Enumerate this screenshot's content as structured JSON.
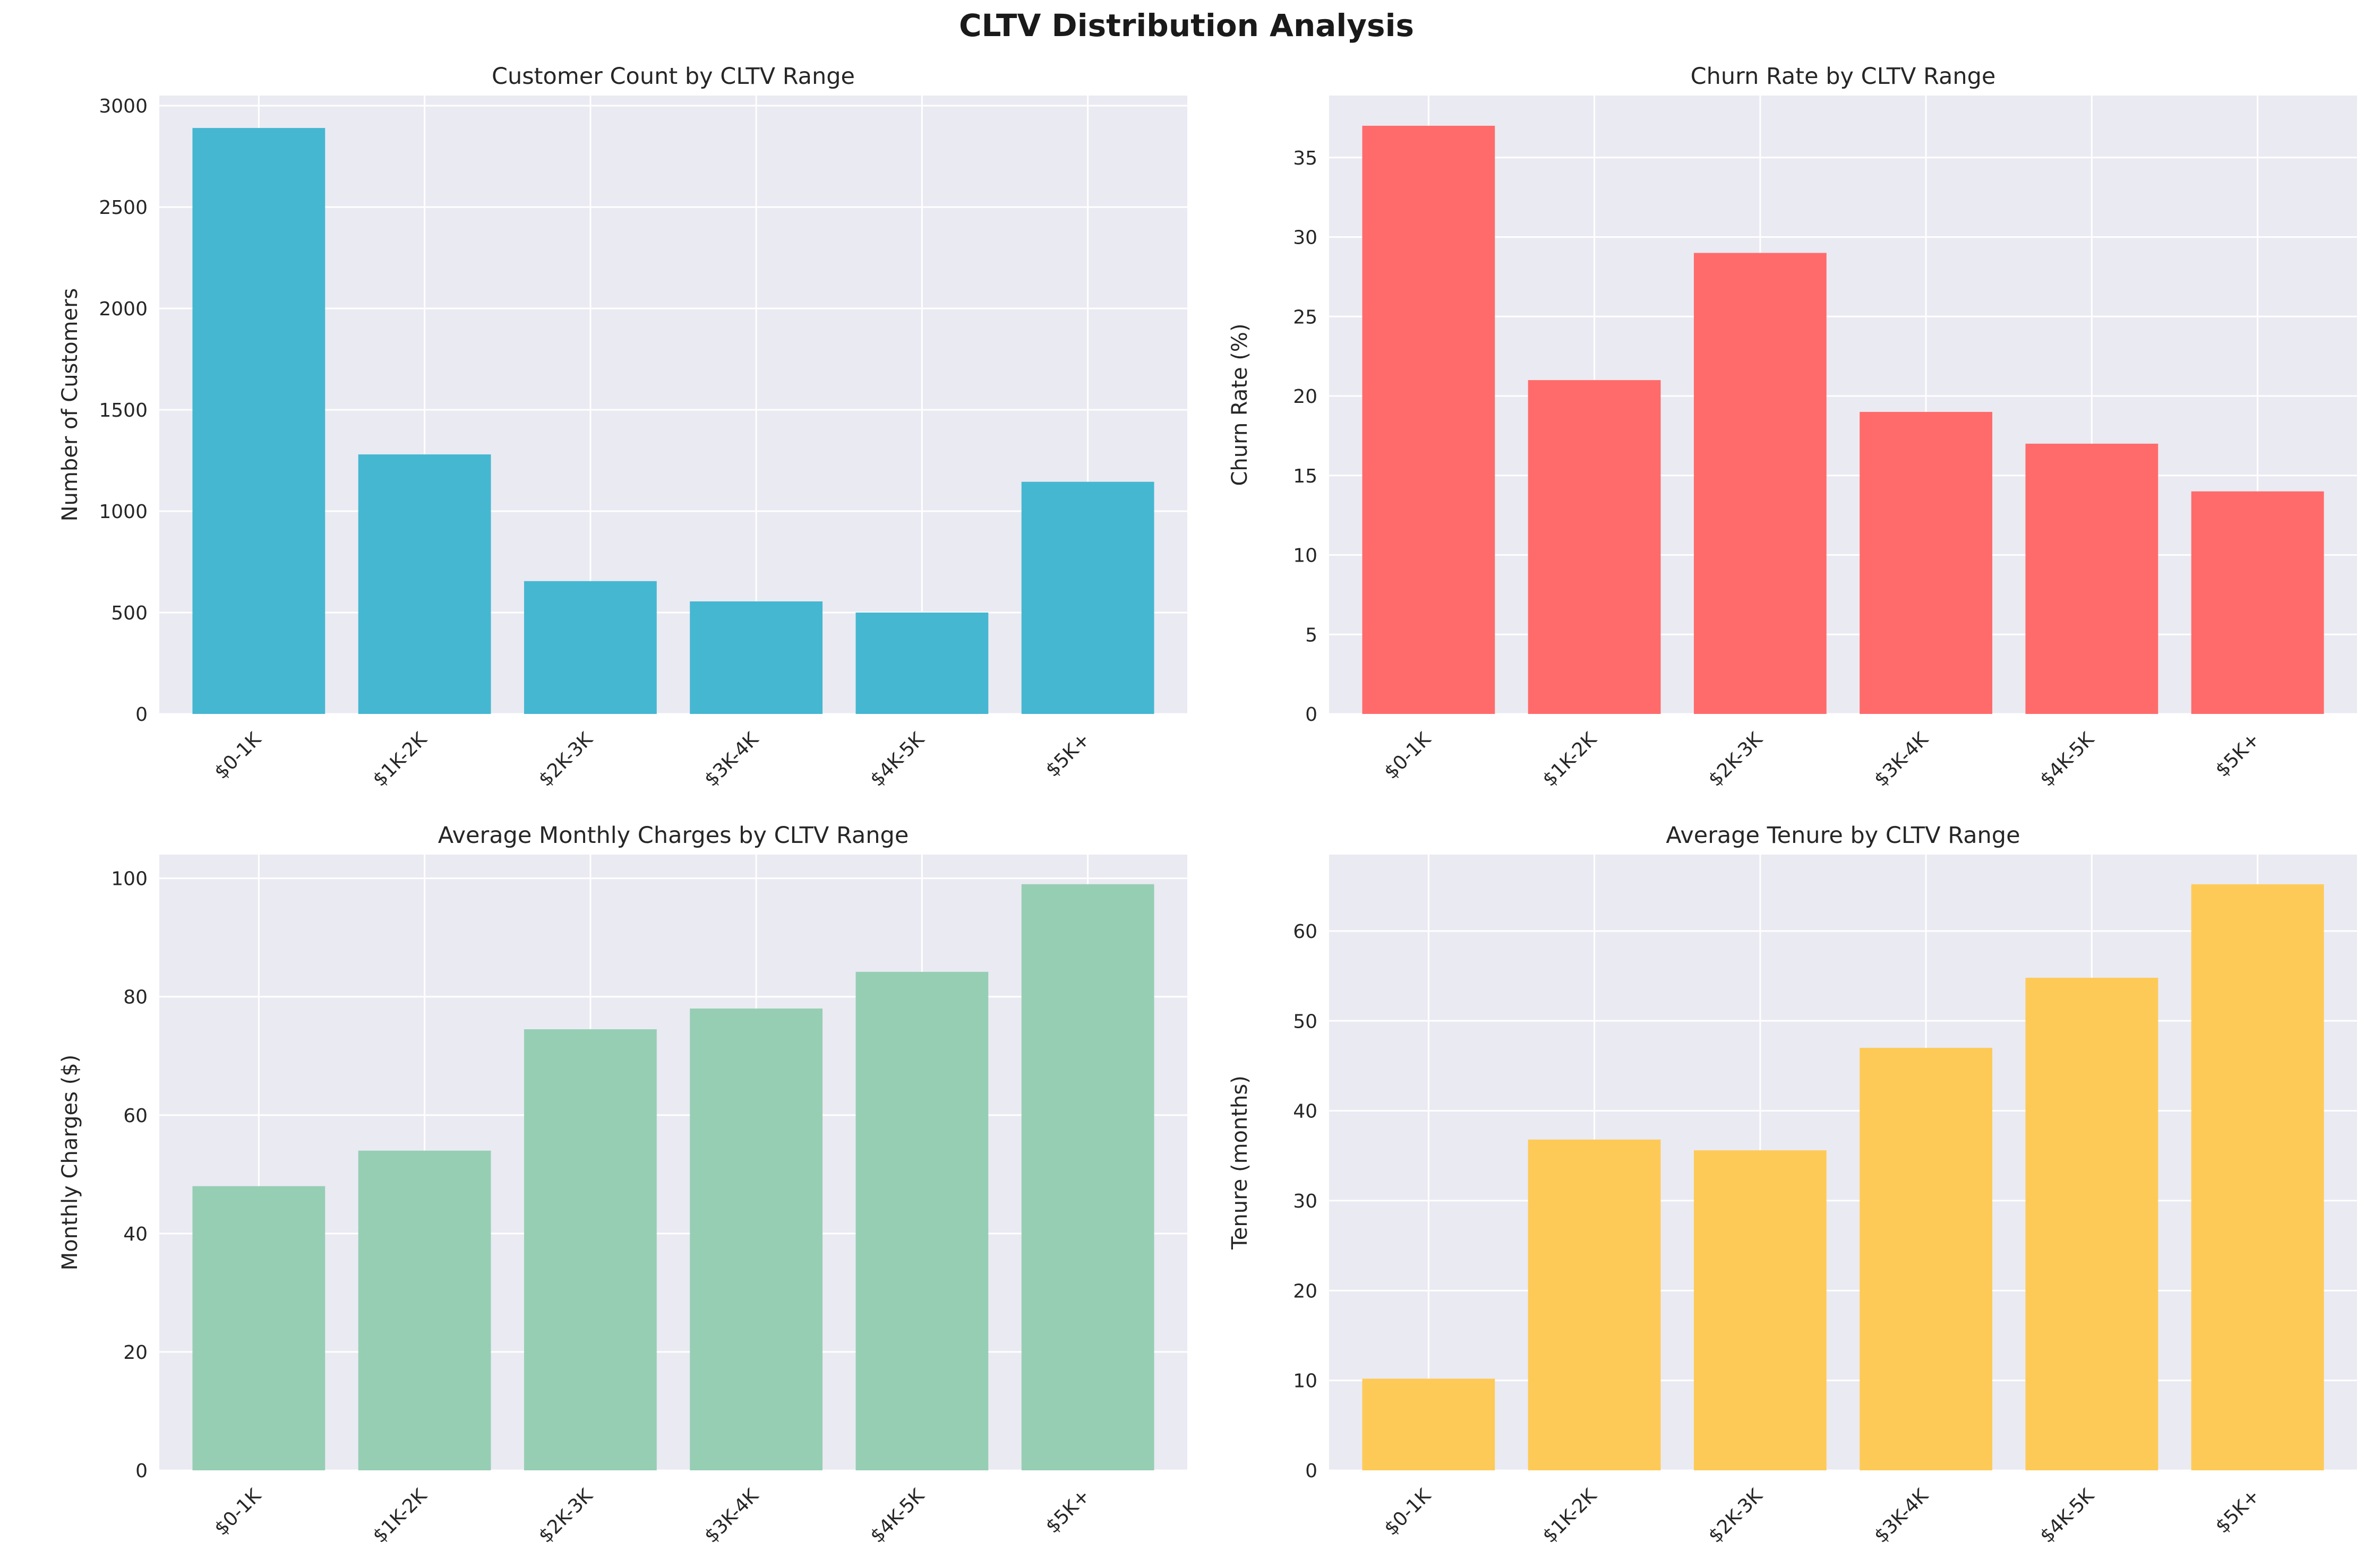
{
  "figure": {
    "title": "CLTV Distribution Analysis"
  },
  "chart_data": [
    {
      "type": "bar",
      "title": "Customer Count by CLTV Range",
      "xlabel": "",
      "ylabel": "Number of Customers",
      "categories": [
        "$0-1K",
        "$1K-2K",
        "$2K-3K",
        "$3K-4K",
        "$4K-5K",
        "$5K+"
      ],
      "values": [
        2890,
        1280,
        655,
        555,
        500,
        1145
      ],
      "ylim": [
        0,
        3050
      ],
      "yticks": [
        0,
        500,
        1000,
        1500,
        2000,
        2500,
        3000
      ],
      "color": "#45b7d1",
      "grid": true
    },
    {
      "type": "bar",
      "title": "Churn Rate by CLTV Range",
      "xlabel": "",
      "ylabel": "Churn Rate (%)",
      "categories": [
        "$0-1K",
        "$1K-2K",
        "$2K-3K",
        "$3K-4K",
        "$4K-5K",
        "$5K+"
      ],
      "values": [
        37,
        21,
        29,
        19,
        17,
        14
      ],
      "ylim": [
        0,
        38.9
      ],
      "yticks": [
        0,
        5,
        10,
        15,
        20,
        25,
        30,
        35
      ],
      "color": "#ff6b6b",
      "grid": true
    },
    {
      "type": "bar",
      "title": "Average Monthly Charges by CLTV Range",
      "xlabel": "",
      "ylabel": "Monthly Charges ($)",
      "categories": [
        "$0-1K",
        "$1K-2K",
        "$2K-3K",
        "$3K-4K",
        "$4K-5K",
        "$5K+"
      ],
      "values": [
        48,
        54,
        74.5,
        78,
        84.2,
        99
      ],
      "ylim": [
        0,
        104
      ],
      "yticks": [
        0,
        20,
        40,
        60,
        80,
        100
      ],
      "color": "#96ceb4",
      "grid": true
    },
    {
      "type": "bar",
      "title": "Average Tenure by CLTV Range",
      "xlabel": "",
      "ylabel": "Tenure (months)",
      "categories": [
        "$0-1K",
        "$1K-2K",
        "$2K-3K",
        "$3K-4K",
        "$4K-5K",
        "$5K+"
      ],
      "values": [
        10.2,
        36.8,
        35.6,
        47,
        54.8,
        65.2
      ],
      "ylim": [
        0,
        68.5
      ],
      "yticks": [
        0,
        10,
        20,
        30,
        40,
        50,
        60
      ],
      "color": "#feca57",
      "grid": true
    }
  ]
}
